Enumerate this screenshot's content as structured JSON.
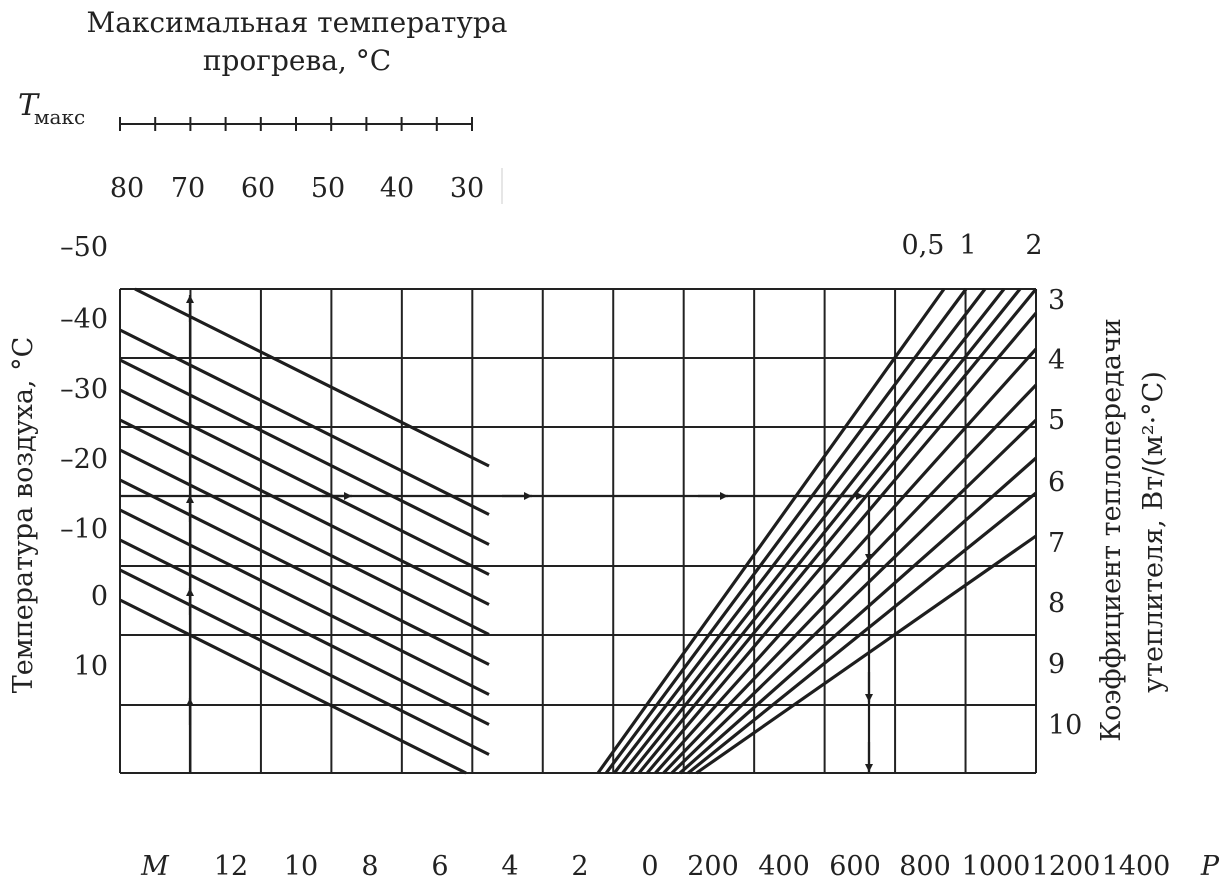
{
  "chart_data": {
    "type": "nomogram",
    "top_scale": {
      "title_line1": "Максимальная температура",
      "title_line2": "прогрева, °C",
      "symbol": "T",
      "symbol_subscript": "макс",
      "tick_labels": [
        "80",
        "70",
        "60",
        "50",
        "40",
        "30"
      ]
    },
    "left_axis": {
      "label": "Температура воздуха, °C",
      "tick_labels": [
        "–50",
        "–40",
        "–30",
        "–20",
        "–10",
        "0",
        "10"
      ]
    },
    "right_axis": {
      "label_line1": "Коэффициент теплопередачи",
      "label_line2": "утеплителя, Вт/(м²·°C)",
      "tick_labels": [
        "3",
        "4",
        "5",
        "6",
        "7",
        "8",
        "9",
        "10"
      ]
    },
    "top_right_labels": [
      "0,5",
      "1",
      "2"
    ],
    "bottom_left_scale": {
      "symbol": "M",
      "tick_labels": [
        "12",
        "10",
        "8",
        "6",
        "4",
        "2",
        "0"
      ]
    },
    "bottom_right_scale": {
      "symbol": "P",
      "tick_labels": [
        "200",
        "400",
        "600",
        "800",
        "1000",
        "1200",
        "1400"
      ]
    },
    "left_family": {
      "line_count": 11,
      "direction": "descending"
    },
    "right_family": {
      "line_count": 13,
      "direction": "ascending"
    },
    "example_path": {
      "arrows": "up along left, right across middle row, down along right"
    }
  }
}
